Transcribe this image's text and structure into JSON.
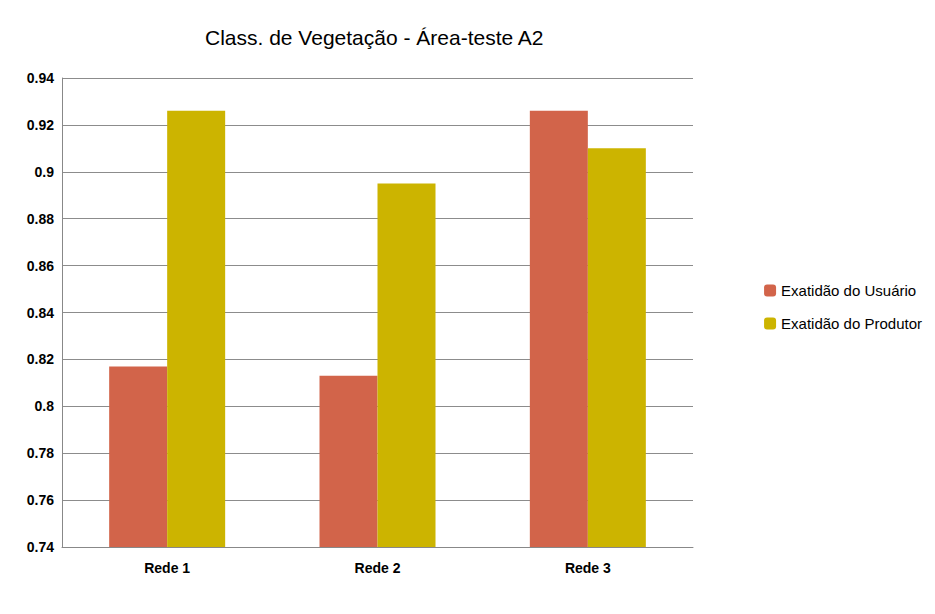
{
  "chart_data": {
    "type": "bar",
    "title": "Class. de Vegetação - Área-teste A2",
    "categories": [
      "Rede 1",
      "Rede 2",
      "Rede 3"
    ],
    "series": [
      {
        "name": "Exatidão do Usuário",
        "color": "#d2644a",
        "values": [
          0.817,
          0.813,
          0.926
        ]
      },
      {
        "name": "Exatidão do Produtor",
        "color": "#ccb400",
        "values": [
          0.926,
          0.895,
          0.91
        ]
      }
    ],
    "ylim": [
      0.74,
      0.94
    ],
    "yticks": [
      0.74,
      0.76,
      0.78,
      0.8,
      0.82,
      0.84,
      0.86,
      0.88,
      0.9,
      0.92,
      0.94
    ],
    "grid": true,
    "legend": "right"
  }
}
